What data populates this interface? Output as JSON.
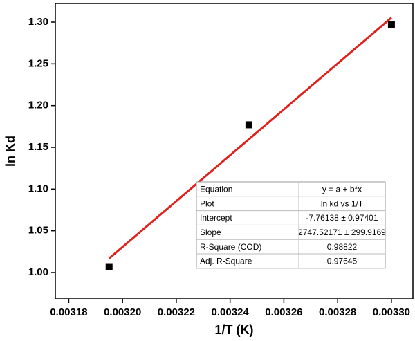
{
  "chart_data": {
    "type": "scatter",
    "x_label": "1/T (K)",
    "y_label": "ln Kd",
    "xlim": [
      0.003175,
      0.003308
    ],
    "ylim": [
      0.9685,
      1.3224
    ],
    "xticks": [
      0.00318,
      {
        "value": 0.0032,
        "label": "0.00320"
      },
      0.00322,
      0.00324,
      0.00326,
      0.00328,
      {
        "value": 0.0033,
        "label": "0.00330"
      }
    ],
    "yticks": [
      {
        "value": 1.0,
        "label": "1.00"
      },
      1.05,
      {
        "value": 1.1,
        "label": "1.10"
      },
      1.15,
      {
        "value": 1.2,
        "label": "1.20"
      },
      1.25,
      {
        "value": 1.3,
        "label": "1.30"
      }
    ],
    "points": {
      "color": "#000000",
      "x": [
        0.003195,
        0.003247,
        0.0033
      ],
      "values": [
        1.007,
        1.177,
        1.297
      ]
    },
    "fit_line": {
      "color": "#e0201b",
      "x": [
        0.003195,
        0.0033
      ],
      "values": [
        1.0169,
        1.3054
      ]
    },
    "fit_table": {
      "rows": [
        [
          "Equation",
          "y = a + b*x"
        ],
        [
          "Plot",
          "ln kd vs 1/T"
        ],
        [
          "Intercept",
          "-7.76138 ± 0.97401"
        ],
        [
          "Slope",
          "2747.52171 ± 299.9169"
        ],
        [
          "R-Square (COD)",
          "0.98822"
        ],
        [
          "Adj. R-Square",
          "0.97645"
        ]
      ]
    }
  }
}
